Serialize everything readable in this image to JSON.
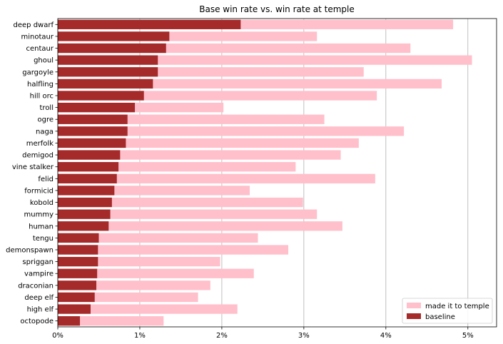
{
  "chart_data": {
    "type": "bar",
    "orientation": "horizontal",
    "title": "Base win rate vs. win rate at temple",
    "xlabel": "",
    "ylabel": "",
    "xlim": [
      0,
      5.35
    ],
    "x_ticks": [
      0,
      1,
      2,
      3,
      4,
      5
    ],
    "x_tick_labels": [
      "0%",
      "1%",
      "2%",
      "3%",
      "4%",
      "5%"
    ],
    "grid": "vertical",
    "legend_position": "lower-right",
    "categories": [
      "deep dwarf",
      "minotaur",
      "centaur",
      "ghoul",
      "gargoyle",
      "halfling",
      "hill orc",
      "troll",
      "ogre",
      "naga",
      "merfolk",
      "demigod",
      "vine stalker",
      "felid",
      "formicid",
      "kobold",
      "mummy",
      "human",
      "tengu",
      "demonspawn",
      "spriggan",
      "vampire",
      "draconian",
      "deep elf",
      "high elf",
      "octopode"
    ],
    "series": [
      {
        "name": "made it to temple",
        "color": "#ffc0cb",
        "values": [
          4.82,
          3.16,
          4.3,
          5.05,
          3.73,
          4.68,
          3.89,
          2.02,
          3.25,
          4.22,
          3.67,
          3.45,
          2.9,
          3.87,
          2.34,
          2.99,
          3.16,
          3.47,
          2.44,
          2.81,
          1.98,
          2.39,
          1.86,
          1.71,
          2.19,
          1.29
        ]
      },
      {
        "name": "baseline",
        "color": "#a52a2a",
        "values": [
          2.23,
          1.36,
          1.32,
          1.22,
          1.22,
          1.16,
          1.05,
          0.94,
          0.85,
          0.85,
          0.83,
          0.76,
          0.74,
          0.72,
          0.69,
          0.66,
          0.64,
          0.62,
          0.5,
          0.49,
          0.49,
          0.48,
          0.47,
          0.45,
          0.4,
          0.27
        ]
      }
    ]
  }
}
